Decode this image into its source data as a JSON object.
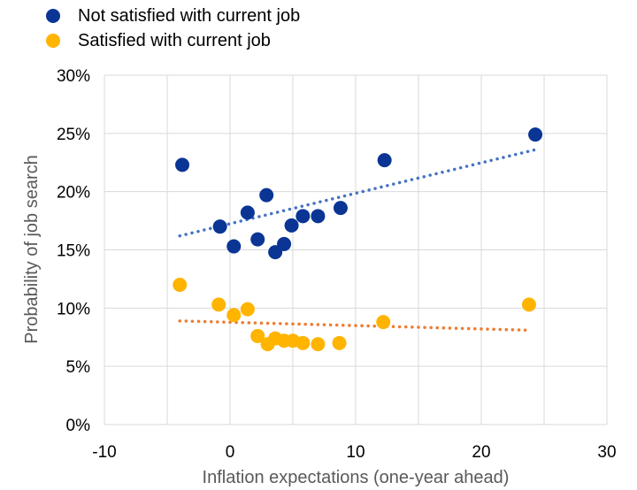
{
  "chart_data": {
    "type": "scatter",
    "xlabel": "Inflation expectations (one-year ahead)",
    "ylabel": "Probability of job search",
    "xlim": [
      -10,
      30
    ],
    "ylim": [
      0,
      30
    ],
    "x_ticks": [
      "-10",
      "0",
      "10",
      "20",
      "30"
    ],
    "y_ticks": [
      "0%",
      "5%",
      "10%",
      "15%",
      "20%",
      "25%",
      "30%"
    ],
    "grid": true,
    "legend_position": "top-left",
    "series": [
      {
        "name": "Not satisfied with current job",
        "color": "#0a3595",
        "trend_color": "#4472c4",
        "points": [
          {
            "x": -3.8,
            "y": 22.3
          },
          {
            "x": -0.8,
            "y": 17.0
          },
          {
            "x": 0.3,
            "y": 15.3
          },
          {
            "x": 1.4,
            "y": 18.2
          },
          {
            "x": 2.2,
            "y": 15.9
          },
          {
            "x": 2.9,
            "y": 19.7
          },
          {
            "x": 3.6,
            "y": 14.8
          },
          {
            "x": 4.3,
            "y": 15.5
          },
          {
            "x": 4.9,
            "y": 17.1
          },
          {
            "x": 5.8,
            "y": 17.9
          },
          {
            "x": 7.0,
            "y": 17.9
          },
          {
            "x": 8.8,
            "y": 18.6
          },
          {
            "x": 12.3,
            "y": 22.7
          },
          {
            "x": 24.3,
            "y": 24.9
          }
        ],
        "trendline": [
          {
            "x": -4.0,
            "y": 16.2
          },
          {
            "x": 24.3,
            "y": 23.6
          }
        ]
      },
      {
        "name": "Satisfied with current job",
        "color": "#ffb400",
        "trend_color": "#ed7d31",
        "points": [
          {
            "x": -4.0,
            "y": 12.0
          },
          {
            "x": -0.9,
            "y": 10.3
          },
          {
            "x": 0.3,
            "y": 9.4
          },
          {
            "x": 1.4,
            "y": 9.9
          },
          {
            "x": 2.2,
            "y": 7.6
          },
          {
            "x": 3.0,
            "y": 6.9
          },
          {
            "x": 3.6,
            "y": 7.4
          },
          {
            "x": 4.3,
            "y": 7.2
          },
          {
            "x": 5.0,
            "y": 7.2
          },
          {
            "x": 5.8,
            "y": 7.0
          },
          {
            "x": 7.0,
            "y": 6.9
          },
          {
            "x": 8.7,
            "y": 7.0
          },
          {
            "x": 12.2,
            "y": 8.8
          },
          {
            "x": 23.8,
            "y": 10.3
          }
        ],
        "trendline": [
          {
            "x": -4.0,
            "y": 8.9
          },
          {
            "x": 23.8,
            "y": 8.1
          }
        ]
      }
    ]
  }
}
